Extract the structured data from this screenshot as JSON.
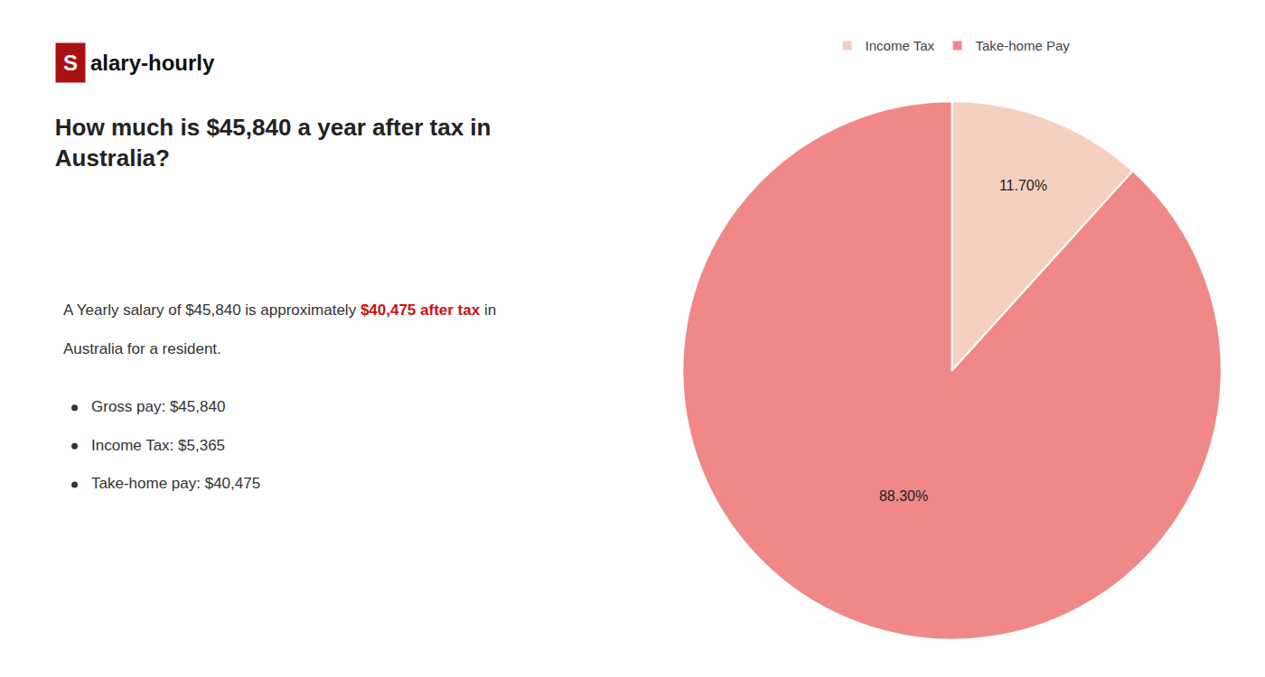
{
  "chart_data": {
    "type": "pie",
    "title": "How much is $45,840 a year after tax in\nAustralia?",
    "categories": [
      "Income Tax",
      "Take-home Pay"
    ],
    "values": [
      11.7,
      88.3
    ],
    "value_labels": [
      "11.70%",
      "88.30%"
    ],
    "colors": [
      "#f5cfc0",
      "#f08888"
    ],
    "data_labels": true,
    "legend": "upper center",
    "annotations": [
      [
        {
          "text": "S",
          "color": "#aa1111"
        },
        {
          "text": "alary-hourly"
        }
      ],
      [
        {
          "text": "A Yearly salary of $45,840 is approximately "
        },
        {
          "text": "$40,475 after tax",
          "color": "#cc1111"
        },
        {
          "text": " in"
        }
      ],
      [
        {
          "text": "Australia for a resident."
        }
      ],
      [
        {
          "text": "Gross pay: $45,840"
        }
      ],
      [
        {
          "text": "Income Tax: $5,365"
        }
      ],
      [
        {
          "text": "Take-home pay: $40,475"
        }
      ]
    ]
  }
}
